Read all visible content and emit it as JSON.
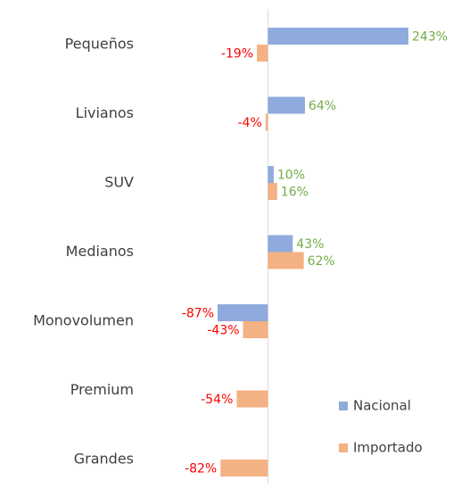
{
  "chart_data": {
    "type": "barh",
    "categories": [
      "Pequeños",
      "Livianos",
      "SUV",
      "Medianos",
      "Monovolumen",
      "Premium",
      "Grandes"
    ],
    "series": [
      {
        "name": "Nacional",
        "color": "#8faadc",
        "values": [
          243,
          64,
          10,
          43,
          -87,
          null,
          null
        ],
        "value_labels": [
          "243%",
          "64%",
          "10%",
          "43%",
          "-87%",
          null,
          null
        ]
      },
      {
        "name": "Importado",
        "color": "#f4b183",
        "values": [
          -19,
          -4,
          16,
          62,
          -43,
          -54,
          -82
        ],
        "value_labels": [
          "-19%",
          "-4%",
          "16%",
          "62%",
          "-43%",
          "-54%",
          "-82%"
        ]
      }
    ],
    "positive_label_color": "#70ad47",
    "negative_label_color": "#ff0000",
    "legend": "lower right"
  }
}
